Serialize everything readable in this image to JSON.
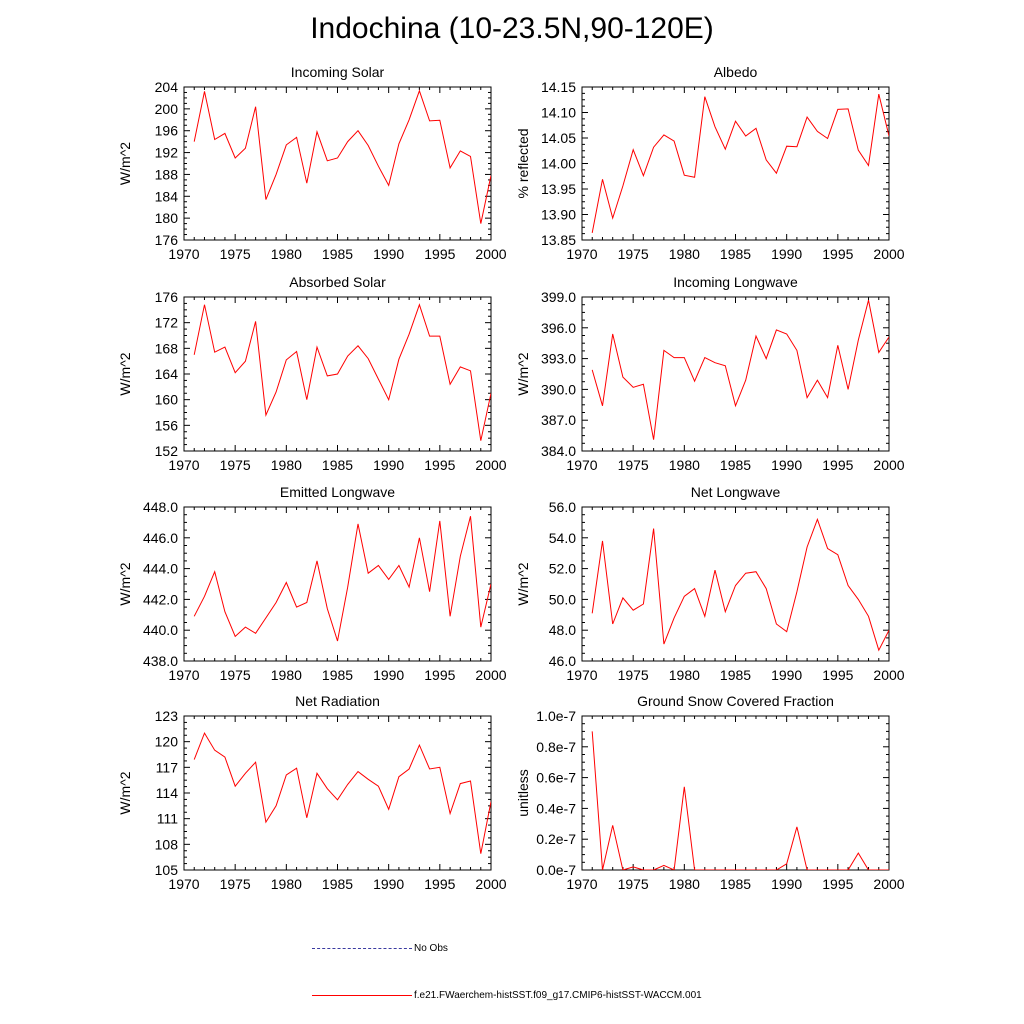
{
  "title": "Indochina (10-23.5N,90-120E)",
  "legend": {
    "obs_label": "No Obs",
    "model_label": "f.e21.FWaerchem-histSST.f09_g17.CMIP6-histSST-WACCM.001",
    "obs_color": "#3a3aa0",
    "model_color": "#ff0000"
  },
  "chart_data": [
    {
      "type": "line",
      "title": "Incoming Solar",
      "ylabel": "W/m^2",
      "xlim": [
        1970,
        2000
      ],
      "ylim": [
        176,
        204
      ],
      "xticks": [
        1970,
        1975,
        1980,
        1985,
        1990,
        1995,
        2000
      ],
      "yticks": [
        "176",
        "180",
        "184",
        "188",
        "192",
        "196",
        "200",
        "204"
      ],
      "x": [
        1971,
        1972,
        1973,
        1974,
        1975,
        1976,
        1977,
        1978,
        1979,
        1980,
        1981,
        1982,
        1983,
        1984,
        1985,
        1986,
        1987,
        1988,
        1989,
        1990,
        1991,
        1992,
        1993,
        1994,
        1995,
        1996,
        1997,
        1998,
        1999,
        2000
      ],
      "series": [
        {
          "values": [
            194.0,
            203.2,
            194.4,
            195.5,
            191.0,
            192.8,
            200.4,
            183.4,
            188.0,
            193.4,
            194.8,
            186.4,
            195.8,
            190.5,
            191.0,
            194.0,
            196.0,
            193.3,
            189.5,
            186.0,
            193.6,
            198.0,
            203.3,
            197.8,
            197.9,
            189.2,
            192.3,
            191.3,
            179.0,
            187.8
          ],
          "color": "#ff0000"
        }
      ]
    },
    {
      "type": "line",
      "title": "Albedo",
      "ylabel": "% reflected",
      "xlim": [
        1970,
        2000
      ],
      "ylim": [
        13.85,
        14.15
      ],
      "xticks": [
        1970,
        1975,
        1980,
        1985,
        1990,
        1995,
        2000
      ],
      "yticks": [
        "13.85",
        "13.90",
        "13.95",
        "14.00",
        "14.05",
        "14.10",
        "14.15"
      ],
      "x": [
        1971,
        1972,
        1973,
        1974,
        1975,
        1976,
        1977,
        1978,
        1979,
        1980,
        1981,
        1982,
        1983,
        1984,
        1985,
        1986,
        1987,
        1988,
        1989,
        1990,
        1991,
        1992,
        1993,
        1994,
        1995,
        1996,
        1997,
        1998,
        1999,
        2000
      ],
      "series": [
        {
          "values": [
            13.864,
            13.969,
            13.893,
            13.956,
            14.027,
            13.976,
            14.032,
            14.056,
            14.044,
            13.977,
            13.973,
            14.131,
            14.072,
            14.028,
            14.083,
            14.054,
            14.069,
            14.007,
            13.981,
            14.034,
            14.033,
            14.091,
            14.063,
            14.049,
            14.106,
            14.107,
            14.026,
            13.996,
            14.136,
            14.054
          ],
          "color": "#ff0000"
        }
      ]
    },
    {
      "type": "line",
      "title": "Absorbed Solar",
      "ylabel": "W/m^2",
      "xlim": [
        1970,
        2000
      ],
      "ylim": [
        152,
        176
      ],
      "xticks": [
        1970,
        1975,
        1980,
        1985,
        1990,
        1995,
        2000
      ],
      "yticks": [
        "152",
        "156",
        "160",
        "164",
        "168",
        "172",
        "176"
      ],
      "x": [
        1971,
        1972,
        1973,
        1974,
        1975,
        1976,
        1977,
        1978,
        1979,
        1980,
        1981,
        1982,
        1983,
        1984,
        1985,
        1986,
        1987,
        1988,
        1989,
        1990,
        1991,
        1992,
        1993,
        1994,
        1995,
        1996,
        1997,
        1998,
        1999,
        2000
      ],
      "series": [
        {
          "values": [
            167.0,
            174.8,
            167.4,
            168.2,
            164.2,
            166.0,
            172.2,
            157.6,
            161.2,
            166.2,
            167.5,
            160.0,
            168.2,
            163.7,
            164.0,
            166.8,
            168.4,
            166.4,
            163.2,
            160.0,
            166.3,
            170.2,
            174.8,
            169.9,
            169.9,
            162.4,
            165.1,
            164.5,
            153.6,
            161.0
          ],
          "color": "#ff0000"
        }
      ]
    },
    {
      "type": "line",
      "title": "Incoming Longwave",
      "ylabel": "W/m^2",
      "xlim": [
        1970,
        2000
      ],
      "ylim": [
        384.0,
        399.0
      ],
      "xticks": [
        1970,
        1975,
        1980,
        1985,
        1990,
        1995,
        2000
      ],
      "yticks": [
        "384.0",
        "387.0",
        "390.0",
        "393.0",
        "396.0",
        "399.0"
      ],
      "x": [
        1971,
        1972,
        1973,
        1974,
        1975,
        1976,
        1977,
        1978,
        1979,
        1980,
        1981,
        1982,
        1983,
        1984,
        1985,
        1986,
        1987,
        1988,
        1989,
        1990,
        1991,
        1992,
        1993,
        1994,
        1995,
        1996,
        1997,
        1998,
        1999,
        2000
      ],
      "series": [
        {
          "values": [
            391.9,
            388.4,
            395.4,
            391.2,
            390.2,
            390.5,
            385.1,
            393.8,
            393.1,
            393.1,
            390.8,
            393.1,
            392.6,
            392.3,
            388.4,
            390.9,
            395.2,
            393.0,
            395.8,
            395.4,
            393.8,
            389.2,
            390.9,
            389.2,
            394.3,
            390.0,
            394.8,
            398.7,
            393.6,
            395.1
          ],
          "color": "#ff0000"
        }
      ]
    },
    {
      "type": "line",
      "title": "Emitted Longwave",
      "ylabel": "W/m^2",
      "xlim": [
        1970,
        2000
      ],
      "ylim": [
        438.0,
        448.0
      ],
      "xticks": [
        1970,
        1975,
        1980,
        1985,
        1990,
        1995,
        2000
      ],
      "yticks": [
        "438.0",
        "440.0",
        "442.0",
        "444.0",
        "446.0",
        "448.0"
      ],
      "x": [
        1971,
        1972,
        1973,
        1974,
        1975,
        1976,
        1977,
        1978,
        1979,
        1980,
        1981,
        1982,
        1983,
        1984,
        1985,
        1986,
        1987,
        1988,
        1989,
        1990,
        1991,
        1992,
        1993,
        1994,
        1995,
        1996,
        1997,
        1998,
        1999,
        2000
      ],
      "series": [
        {
          "values": [
            440.9,
            442.2,
            443.8,
            441.2,
            439.6,
            440.2,
            439.8,
            440.8,
            441.8,
            443.1,
            441.5,
            441.8,
            444.5,
            441.4,
            439.3,
            442.8,
            446.9,
            443.7,
            444.2,
            443.3,
            444.2,
            442.8,
            446.0,
            442.5,
            447.1,
            440.9,
            444.8,
            447.4,
            440.2,
            443.0
          ],
          "color": "#ff0000"
        }
      ]
    },
    {
      "type": "line",
      "title": "Net Longwave",
      "ylabel": "W/m^2",
      "xlim": [
        1970,
        2000
      ],
      "ylim": [
        46.0,
        56.0
      ],
      "xticks": [
        1970,
        1975,
        1980,
        1985,
        1990,
        1995,
        2000
      ],
      "yticks": [
        "46.0",
        "48.0",
        "50.0",
        "52.0",
        "54.0",
        "56.0"
      ],
      "x": [
        1971,
        1972,
        1973,
        1974,
        1975,
        1976,
        1977,
        1978,
        1979,
        1980,
        1981,
        1982,
        1983,
        1984,
        1985,
        1986,
        1987,
        1988,
        1989,
        1990,
        1991,
        1992,
        1993,
        1994,
        1995,
        1996,
        1997,
        1998,
        1999,
        2000
      ],
      "series": [
        {
          "values": [
            49.1,
            53.8,
            48.4,
            50.1,
            49.3,
            49.7,
            54.6,
            47.1,
            48.8,
            50.2,
            50.7,
            48.9,
            51.9,
            49.2,
            50.9,
            51.7,
            51.8,
            50.7,
            48.4,
            47.9,
            50.5,
            53.4,
            55.2,
            53.3,
            52.9,
            50.9,
            50.0,
            48.9,
            46.7,
            48.0
          ],
          "color": "#ff0000"
        }
      ]
    },
    {
      "type": "line",
      "title": "Net Radiation",
      "ylabel": "W/m^2",
      "xlim": [
        1970,
        2000
      ],
      "ylim": [
        105,
        123
      ],
      "xticks": [
        1970,
        1975,
        1980,
        1985,
        1990,
        1995,
        2000
      ],
      "yticks": [
        "105",
        "108",
        "111",
        "114",
        "117",
        "120",
        "123"
      ],
      "x": [
        1971,
        1972,
        1973,
        1974,
        1975,
        1976,
        1977,
        1978,
        1979,
        1980,
        1981,
        1982,
        1983,
        1984,
        1985,
        1986,
        1987,
        1988,
        1989,
        1990,
        1991,
        1992,
        1993,
        1994,
        1995,
        1996,
        1997,
        1998,
        1999,
        2000
      ],
      "series": [
        {
          "values": [
            117.9,
            121.0,
            119.0,
            118.2,
            114.8,
            116.3,
            117.6,
            110.6,
            112.5,
            116.1,
            116.9,
            111.1,
            116.3,
            114.5,
            113.2,
            115.0,
            116.5,
            115.6,
            114.8,
            112.1,
            115.9,
            116.8,
            119.6,
            116.8,
            117.0,
            111.6,
            115.1,
            115.4,
            106.9,
            113.0
          ],
          "color": "#ff0000"
        }
      ]
    },
    {
      "type": "line",
      "title": "Ground Snow Covered Fraction",
      "ylabel": "unitless",
      "xlim": [
        1970,
        2000
      ],
      "ylim": [
        0.0,
        1.0
      ],
      "yunit_note": "tick labels in units of 1e-7",
      "xticks": [
        1970,
        1975,
        1980,
        1985,
        1990,
        1995,
        2000
      ],
      "yticks": [
        "0.0e-7",
        "0.2e-7",
        "0.4e-7",
        "0.6e-7",
        "0.8e-7",
        "1.0e-7"
      ],
      "x": [
        1971,
        1972,
        1973,
        1974,
        1975,
        1976,
        1977,
        1978,
        1979,
        1980,
        1981,
        1982,
        1983,
        1984,
        1985,
        1986,
        1987,
        1988,
        1989,
        1990,
        1991,
        1992,
        1993,
        1994,
        1995,
        1996,
        1997,
        1998,
        1999,
        2000
      ],
      "series": [
        {
          "values": [
            0.9,
            0.0,
            0.29,
            0.0,
            0.02,
            0.0,
            0.0,
            0.03,
            0.0,
            0.54,
            0.0,
            0.0,
            0.0,
            0.0,
            0.0,
            0.0,
            0.0,
            0.0,
            0.0,
            0.04,
            0.28,
            0.0,
            0.0,
            0.0,
            0.0,
            0.0,
            0.11,
            0.0,
            0.0,
            0.0
          ],
          "color": "#ff0000"
        }
      ]
    }
  ]
}
